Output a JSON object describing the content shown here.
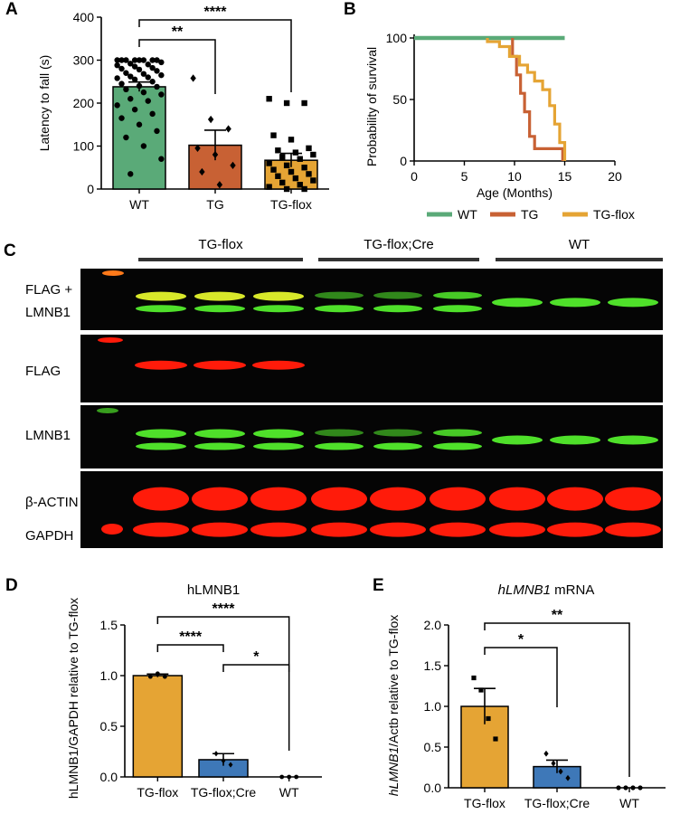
{
  "figure": {
    "panels": {
      "A": "A",
      "B": "B",
      "C": "C",
      "D": "D",
      "E": "E"
    }
  },
  "chart_data": [
    {
      "panel": "A",
      "type": "bar",
      "categories": [
        "WT",
        "TG",
        "TG-flox"
      ],
      "values": [
        238,
        102,
        67
      ],
      "errors": [
        11,
        35,
        16
      ],
      "colors": [
        "#5aaa78",
        "#c86134",
        "#e5a434"
      ],
      "points": [
        [
          300,
          300,
          300,
          300,
          300,
          300,
          300,
          300,
          295,
          292,
          290,
          288,
          285,
          282,
          280,
          278,
          275,
          270,
          268,
          265,
          262,
          260,
          258,
          255,
          250,
          245,
          240,
          238,
          232,
          225,
          220,
          210,
          205,
          195,
          185,
          175,
          165,
          150,
          135,
          120,
          100,
          70,
          35
        ],
        [
          258,
          162,
          140,
          95,
          80,
          55,
          40,
          10
        ],
        [
          210,
          200,
          200,
          125,
          115,
          95,
          90,
          85,
          80,
          75,
          70,
          60,
          55,
          50,
          45,
          40,
          35,
          30,
          25,
          20,
          15,
          10,
          5,
          0,
          0
        ]
      ],
      "marker_shapes": [
        "circle",
        "diamond",
        "square"
      ],
      "ylabel": "Latency to fall (s)",
      "xlabel": "",
      "ylim": [
        0,
        400
      ],
      "yticks": [
        "0",
        "100",
        "200",
        "300",
        "400"
      ],
      "significance": [
        {
          "from": 0,
          "to": 1,
          "label": "**"
        },
        {
          "from": 0,
          "to": 2,
          "label": "****"
        }
      ]
    },
    {
      "panel": "B",
      "type": "line",
      "xlabel": "Age (Months)",
      "ylabel": "Probability of survival",
      "xlim": [
        0,
        20
      ],
      "ylim": [
        0,
        100
      ],
      "xticks": [
        "0",
        "5",
        "10",
        "15",
        "20"
      ],
      "yticks": [
        "0",
        "50",
        "100"
      ],
      "series": [
        {
          "name": "WT",
          "color": "#5aaa78",
          "x": [
            0,
            15
          ],
          "y": [
            100,
            100
          ]
        },
        {
          "name": "TG",
          "color": "#c86134",
          "x": [
            9.8,
            9.8,
            10.2,
            10.2,
            10.6,
            10.6,
            11.0,
            11.0,
            11.5,
            11.5,
            12.0,
            12.0,
            14.8,
            14.8
          ],
          "y": [
            100,
            85,
            85,
            70,
            70,
            55,
            55,
            40,
            40,
            20,
            20,
            10,
            10,
            0
          ]
        },
        {
          "name": "TG-flox",
          "color": "#e5a434",
          "x": [
            7.3,
            7.3,
            8.5,
            8.5,
            9.5,
            9.5,
            10.5,
            10.5,
            11.3,
            11.3,
            12.0,
            12.0,
            12.8,
            12.8,
            13.5,
            13.5,
            14.0,
            14.0,
            14.5,
            14.5,
            15.0,
            15.0
          ],
          "y": [
            100,
            97,
            97,
            93,
            93,
            85,
            85,
            78,
            78,
            72,
            72,
            65,
            65,
            58,
            58,
            45,
            45,
            30,
            30,
            15,
            15,
            0
          ]
        }
      ],
      "legend": [
        "WT",
        "TG",
        "TG-flox"
      ],
      "legend_position": "bottom"
    },
    {
      "panel": "D",
      "type": "bar",
      "title": "hLMNB1",
      "categories": [
        "TG-flox",
        "TG-flox;Cre",
        "WT"
      ],
      "values": [
        1.0,
        0.17,
        0.0
      ],
      "errors": [
        0.015,
        0.06,
        0.0
      ],
      "colors": [
        "#e5a434",
        "#3e78b8",
        "#ffffff"
      ],
      "points": [
        [
          0.99,
          1.02,
          0.99
        ],
        [
          0.23,
          0.16,
          0.12
        ],
        [
          0.0,
          0.0,
          0.0
        ]
      ],
      "ylabel": "hLMNB1/GAPDH relative to TG-flox",
      "xlabel": "",
      "ylim": [
        0,
        1.5
      ],
      "yticks": [
        "0.0",
        "0.5",
        "1.0",
        "1.5"
      ],
      "significance": [
        {
          "from": 0,
          "to": 1,
          "label": "****"
        },
        {
          "from": 1,
          "to": 2,
          "label": "*"
        },
        {
          "from": 0,
          "to": 2,
          "label": "****"
        }
      ]
    },
    {
      "panel": "E",
      "type": "bar",
      "title_italic": "hLMNB1",
      "title_rest": " mRNA",
      "categories": [
        "TG-flox",
        "TG-flox;Cre",
        "WT"
      ],
      "values": [
        1.0,
        0.26,
        0.0
      ],
      "errors": [
        0.22,
        0.08,
        0.0
      ],
      "colors": [
        "#e5a434",
        "#3e78b8",
        "#ffffff"
      ],
      "points": [
        [
          1.35,
          1.2,
          0.85,
          0.6
        ],
        [
          0.42,
          0.3,
          0.2,
          0.12
        ],
        [
          0.0,
          0.0,
          0.0,
          0.0
        ]
      ],
      "ylabel_italic": "hLMNB1",
      "ylabel_rest": "/Actb relative to TG-flox",
      "xlabel": "",
      "ylim": [
        0,
        2.0
      ],
      "yticks": [
        "0.0",
        "0.5",
        "1.0",
        "1.5",
        "2.0"
      ],
      "significance": [
        {
          "from": 0,
          "to": 1,
          "label": "*"
        },
        {
          "from": 0,
          "to": 2,
          "label": "**"
        }
      ]
    }
  ],
  "blot": {
    "groups": [
      "TG-flox",
      "TG-flox;Cre",
      "WT"
    ],
    "rows": [
      {
        "label_lines": [
          "FLAG +",
          "LMNB1"
        ]
      },
      {
        "label_lines": [
          "FLAG"
        ]
      },
      {
        "label_lines": [
          "LMNB1"
        ]
      },
      {
        "label_lines": [
          "β-ACTIN",
          "GAPDH"
        ]
      }
    ],
    "colors": {
      "green": "#4fe02a",
      "yellow": "#d8e82a",
      "red": "#ff1b0a",
      "background": "#050505"
    }
  }
}
